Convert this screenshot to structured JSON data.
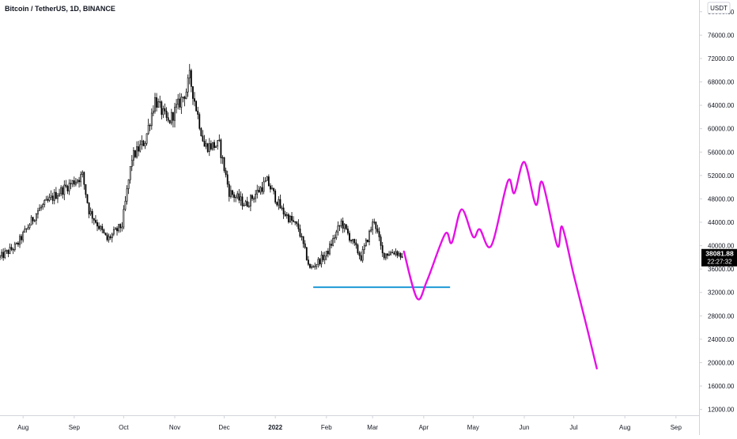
{
  "header": {
    "symbol_title": "Bitcoin / TetherUS, 1D, BINANCE"
  },
  "axis": {
    "currency_label": "USDT",
    "current_price": "38081.88",
    "countdown": "22:27:32"
  },
  "colors": {
    "candle": "#000000",
    "background": "#ffffff",
    "axis_text": "#131722",
    "axis_line": "#d1d4dc",
    "projection": "#e60fe6",
    "support_line": "#1e9ad6",
    "price_tag_bg": "#000000",
    "price_tag_text": "#ffffff"
  },
  "chart_data": {
    "type": "candlestick",
    "title": "Bitcoin / TetherUS, 1D, BINANCE",
    "ylabel": "USDT",
    "ylim": [
      11000,
      82000
    ],
    "y_ticks": [
      12000,
      16000,
      20000,
      24000,
      28000,
      32000,
      36000,
      40000,
      44000,
      48000,
      52000,
      56000,
      60000,
      64000,
      68000,
      72000,
      76000,
      80000
    ],
    "y_tick_labels": [
      "12000.00",
      "16000.00",
      "20000.00",
      "24000.00",
      "28000.00",
      "32000.00",
      "36000.00",
      "40000.00",
      "44000.00",
      "48000.00",
      "52000.00",
      "56000.00",
      "60000.00",
      "64000.00",
      "68000.00",
      "72000.00",
      "76000.00",
      "80000.00"
    ],
    "x_ticks": [
      "Aug",
      "Sep",
      "Oct",
      "Nov",
      "Dec",
      "2022",
      "Feb",
      "Mar",
      "Apr",
      "May",
      "Jun",
      "Jul",
      "Aug",
      "Sep"
    ],
    "x_range": [
      "2021-07-18",
      "2022-09-15"
    ],
    "grid": false,
    "price_series_keypoints": [
      {
        "date": "2021-07-18",
        "close": 38000
      },
      {
        "date": "2021-07-28",
        "close": 40000
      },
      {
        "date": "2021-08-10",
        "close": 46000
      },
      {
        "date": "2021-08-22",
        "close": 49000
      },
      {
        "date": "2021-09-06",
        "close": 52000
      },
      {
        "date": "2021-09-10",
        "close": 46000
      },
      {
        "date": "2021-09-21",
        "close": 41000
      },
      {
        "date": "2021-09-30",
        "close": 43500
      },
      {
        "date": "2021-10-06",
        "close": 55000
      },
      {
        "date": "2021-10-14",
        "close": 58000
      },
      {
        "date": "2021-10-20",
        "close": 65000
      },
      {
        "date": "2021-10-28",
        "close": 61000
      },
      {
        "date": "2021-11-08",
        "close": 66500
      },
      {
        "date": "2021-11-10",
        "close": 68800
      },
      {
        "date": "2021-11-19",
        "close": 57000
      },
      {
        "date": "2021-11-28",
        "close": 57200
      },
      {
        "date": "2021-12-04",
        "close": 49200
      },
      {
        "date": "2021-12-14",
        "close": 47000
      },
      {
        "date": "2021-12-27",
        "close": 51000
      },
      {
        "date": "2022-01-05",
        "close": 46000
      },
      {
        "date": "2022-01-15",
        "close": 43000
      },
      {
        "date": "2022-01-22",
        "close": 36000
      },
      {
        "date": "2022-02-01",
        "close": 38500
      },
      {
        "date": "2022-02-10",
        "close": 44000
      },
      {
        "date": "2022-02-22",
        "close": 38000
      },
      {
        "date": "2022-03-02",
        "close": 44500
      },
      {
        "date": "2022-03-07",
        "close": 38500
      },
      {
        "date": "2022-03-15",
        "close": 39000
      },
      {
        "date": "2022-03-19",
        "close": 38081.88
      }
    ],
    "support_level": {
      "value": 32900,
      "from": "2022-01-24",
      "to": "2022-04-17"
    },
    "projection": [
      {
        "date": "2022-03-20",
        "value": 39000
      },
      {
        "date": "2022-03-28",
        "value": 31000
      },
      {
        "date": "2022-04-03",
        "value": 34000
      },
      {
        "date": "2022-04-14",
        "value": 42000
      },
      {
        "date": "2022-04-18",
        "value": 40500
      },
      {
        "date": "2022-04-24",
        "value": 46200
      },
      {
        "date": "2022-05-01",
        "value": 41500
      },
      {
        "date": "2022-05-05",
        "value": 42800
      },
      {
        "date": "2022-05-12",
        "value": 40000
      },
      {
        "date": "2022-05-22",
        "value": 51000
      },
      {
        "date": "2022-05-26",
        "value": 49000
      },
      {
        "date": "2022-06-01",
        "value": 54300
      },
      {
        "date": "2022-06-08",
        "value": 47000
      },
      {
        "date": "2022-06-12",
        "value": 50800
      },
      {
        "date": "2022-06-21",
        "value": 40000
      },
      {
        "date": "2022-06-24",
        "value": 43200
      },
      {
        "date": "2022-07-01",
        "value": 35000
      },
      {
        "date": "2022-07-09",
        "value": 26000
      },
      {
        "date": "2022-07-15",
        "value": 19000
      }
    ],
    "last_price": 38081.88
  }
}
